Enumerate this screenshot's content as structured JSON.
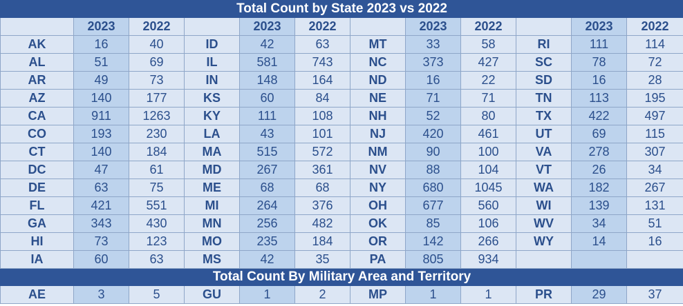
{
  "title": "Total Count by State 2023 vs 2022",
  "year_a": "2023",
  "year_b": "2022",
  "groups": [
    {
      "rows": [
        {
          "state": "AK",
          "y2023": "16",
          "y2022": "40"
        },
        {
          "state": "AL",
          "y2023": "51",
          "y2022": "69"
        },
        {
          "state": "AR",
          "y2023": "49",
          "y2022": "73"
        },
        {
          "state": "AZ",
          "y2023": "140",
          "y2022": "177"
        },
        {
          "state": "CA",
          "y2023": "911",
          "y2022": "1263"
        },
        {
          "state": "CO",
          "y2023": "193",
          "y2022": "230"
        },
        {
          "state": "CT",
          "y2023": "140",
          "y2022": "184"
        },
        {
          "state": "DC",
          "y2023": "47",
          "y2022": "61"
        },
        {
          "state": "DE",
          "y2023": "63",
          "y2022": "75"
        },
        {
          "state": "FL",
          "y2023": "421",
          "y2022": "551"
        },
        {
          "state": "GA",
          "y2023": "343",
          "y2022": "430"
        },
        {
          "state": "HI",
          "y2023": "73",
          "y2022": "123"
        },
        {
          "state": "IA",
          "y2023": "60",
          "y2022": "63"
        }
      ]
    },
    {
      "rows": [
        {
          "state": "ID",
          "y2023": "42",
          "y2022": "63"
        },
        {
          "state": "IL",
          "y2023": "581",
          "y2022": "743"
        },
        {
          "state": "IN",
          "y2023": "148",
          "y2022": "164"
        },
        {
          "state": "KS",
          "y2023": "60",
          "y2022": "84"
        },
        {
          "state": "KY",
          "y2023": "111",
          "y2022": "108"
        },
        {
          "state": "LA",
          "y2023": "43",
          "y2022": "101"
        },
        {
          "state": "MA",
          "y2023": "515",
          "y2022": "572"
        },
        {
          "state": "MD",
          "y2023": "267",
          "y2022": "361"
        },
        {
          "state": "ME",
          "y2023": "68",
          "y2022": "68"
        },
        {
          "state": "MI",
          "y2023": "264",
          "y2022": "376"
        },
        {
          "state": "MN",
          "y2023": "256",
          "y2022": "482"
        },
        {
          "state": "MO",
          "y2023": "235",
          "y2022": "184"
        },
        {
          "state": "MS",
          "y2023": "42",
          "y2022": "35"
        }
      ]
    },
    {
      "rows": [
        {
          "state": "MT",
          "y2023": "33",
          "y2022": "58"
        },
        {
          "state": "NC",
          "y2023": "373",
          "y2022": "427"
        },
        {
          "state": "ND",
          "y2023": "16",
          "y2022": "22"
        },
        {
          "state": "NE",
          "y2023": "71",
          "y2022": "71"
        },
        {
          "state": "NH",
          "y2023": "52",
          "y2022": "80"
        },
        {
          "state": "NJ",
          "y2023": "420",
          "y2022": "461"
        },
        {
          "state": "NM",
          "y2023": "90",
          "y2022": "100"
        },
        {
          "state": "NV",
          "y2023": "88",
          "y2022": "104"
        },
        {
          "state": "NY",
          "y2023": "680",
          "y2022": "1045"
        },
        {
          "state": "OH",
          "y2023": "677",
          "y2022": "560"
        },
        {
          "state": "OK",
          "y2023": "85",
          "y2022": "106"
        },
        {
          "state": "OR",
          "y2023": "142",
          "y2022": "266"
        },
        {
          "state": "PA",
          "y2023": "805",
          "y2022": "934"
        }
      ]
    },
    {
      "rows": [
        {
          "state": "RI",
          "y2023": "111",
          "y2022": "114"
        },
        {
          "state": "SC",
          "y2023": "78",
          "y2022": "72"
        },
        {
          "state": "SD",
          "y2023": "16",
          "y2022": "28"
        },
        {
          "state": "TN",
          "y2023": "113",
          "y2022": "195"
        },
        {
          "state": "TX",
          "y2023": "422",
          "y2022": "497"
        },
        {
          "state": "UT",
          "y2023": "69",
          "y2022": "115"
        },
        {
          "state": "VA",
          "y2023": "278",
          "y2022": "307"
        },
        {
          "state": "VT",
          "y2023": "26",
          "y2022": "34"
        },
        {
          "state": "WA",
          "y2023": "182",
          "y2022": "267"
        },
        {
          "state": "WI",
          "y2023": "139",
          "y2022": "131"
        },
        {
          "state": "WV",
          "y2023": "34",
          "y2022": "51"
        },
        {
          "state": "WY",
          "y2023": "14",
          "y2022": "16"
        },
        {
          "state": "",
          "y2023": "",
          "y2022": ""
        }
      ]
    }
  ],
  "military_title": "Total Count By Military Area and Territory",
  "military": [
    {
      "state": "AE",
      "y2023": "3",
      "y2022": "5"
    },
    {
      "state": "GU",
      "y2023": "1",
      "y2022": "2"
    },
    {
      "state": "MP",
      "y2023": "1",
      "y2022": "1"
    },
    {
      "state": "PR",
      "y2023": "29",
      "y2022": "37"
    }
  ],
  "colors": {
    "header_bg": "#2f5597",
    "cell_bg": "#dce6f4",
    "col2023_bg": "#bdd3ed",
    "text": "#2b4f8c"
  }
}
